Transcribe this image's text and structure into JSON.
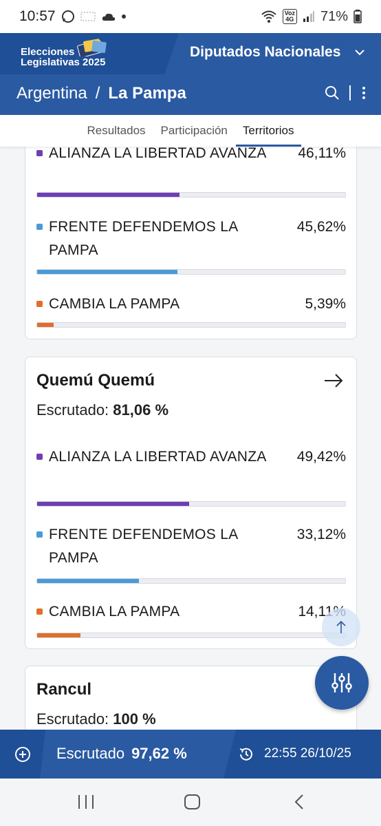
{
  "status_bar": {
    "time": "10:57",
    "battery": "71%",
    "network_label_top": "Voz",
    "network_label_bottom": "4G"
  },
  "header": {
    "logo_line1": "Elecciones",
    "logo_line2": "Legislativas 2025",
    "chamber": "Diputados Nacionales",
    "breadcrumb_root": "Argentina",
    "breadcrumb_sep": "/",
    "breadcrumb_current": "La Pampa"
  },
  "tabs": [
    {
      "label": "Resultados",
      "active": false
    },
    {
      "label": "Participación",
      "active": false
    },
    {
      "label": "Territorios",
      "active": true
    }
  ],
  "cards": [
    {
      "title": "",
      "parties": [
        {
          "name": "ALIANZA LA LIBERTAD AVANZA",
          "pct": "46,11%",
          "value": 46.11,
          "color": "#6f3fb4"
        },
        {
          "name": "FRENTE DEFENDEMOS LA PAMPA",
          "pct": "45,62%",
          "value": 45.62,
          "color": "#4b9ad6"
        },
        {
          "name": "CAMBIA LA PAMPA",
          "pct": "5,39%",
          "value": 5.39,
          "color": "#e06f2a"
        }
      ]
    },
    {
      "title": "Quemú Quemú",
      "scrutiny_label": "Escrutado:",
      "scrutiny_value": "81,06 %",
      "parties": [
        {
          "name": "ALIANZA LA LIBERTAD AVANZA",
          "pct": "49,42%",
          "value": 49.42,
          "color": "#6f3fb4"
        },
        {
          "name": "FRENTE DEFENDEMOS LA PAMPA",
          "pct": "33,12%",
          "value": 33.12,
          "color": "#4b9ad6"
        },
        {
          "name": "CAMBIA LA PAMPA",
          "pct": "14,11%",
          "value": 14.11,
          "color": "#e06f2a"
        }
      ]
    },
    {
      "title": "Rancul",
      "scrutiny_label": "Escrutado:",
      "scrutiny_value": "100 %"
    }
  ],
  "bottom_bar": {
    "scrutiny_label": "Escrutado",
    "scrutiny_value": "97,62 %",
    "updated": "22:55 26/10/25"
  },
  "nav": {
    "recents": "|||"
  }
}
